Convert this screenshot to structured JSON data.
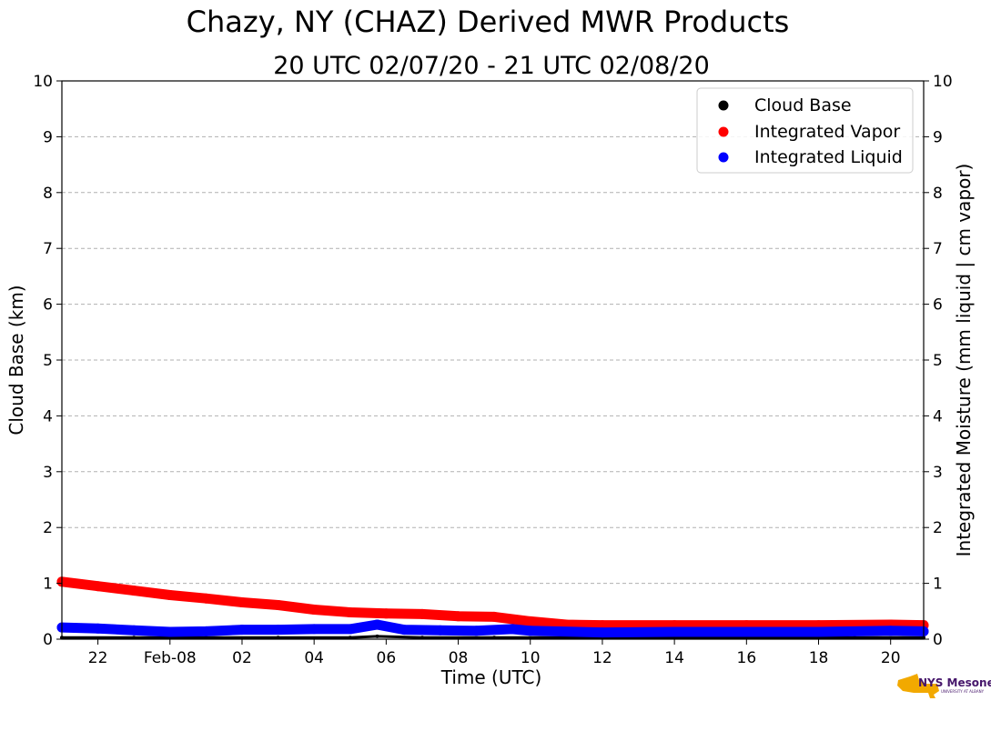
{
  "chart_data": {
    "type": "scatter",
    "title": "Chazy, NY (CHAZ) Derived MWR Products",
    "subtitle": "20 UTC 02/07/20 - 21 UTC 02/08/20",
    "xlabel": "Time (UTC)",
    "ylabel": "Cloud Base (km)",
    "ylabel_right": "Integrated Moisture (mm liquid | cm vapor)",
    "xlim": [
      "2020-02-07 21:00",
      "2020-02-08 20:55"
    ],
    "ylim": [
      0,
      10
    ],
    "ylim_right": [
      0,
      10
    ],
    "grid": true,
    "legend_position": "top-right",
    "x_ticks": [
      {
        "t": "2020-02-07 22:00",
        "label": "22"
      },
      {
        "t": "2020-02-08 00:00",
        "label": "Feb-08"
      },
      {
        "t": "2020-02-08 02:00",
        "label": "02"
      },
      {
        "t": "2020-02-08 04:00",
        "label": "04"
      },
      {
        "t": "2020-02-08 06:00",
        "label": "06"
      },
      {
        "t": "2020-02-08 08:00",
        "label": "08"
      },
      {
        "t": "2020-02-08 10:00",
        "label": "10"
      },
      {
        "t": "2020-02-08 12:00",
        "label": "12"
      },
      {
        "t": "2020-02-08 14:00",
        "label": "14"
      },
      {
        "t": "2020-02-08 16:00",
        "label": "16"
      },
      {
        "t": "2020-02-08 18:00",
        "label": "18"
      },
      {
        "t": "2020-02-08 20:00",
        "label": "20"
      }
    ],
    "y_ticks": [
      "0",
      "1",
      "2",
      "3",
      "4",
      "5",
      "6",
      "7",
      "8",
      "9",
      "10"
    ],
    "series": [
      {
        "name": "Cloud Base",
        "color": "#000000",
        "points": [
          [
            "2020-02-07 21:00",
            0.03
          ],
          [
            "2020-02-07 23:00",
            0.03
          ],
          [
            "2020-02-08 01:00",
            0.03
          ],
          [
            "2020-02-08 03:00",
            0.03
          ],
          [
            "2020-02-08 05:00",
            0.03
          ],
          [
            "2020-02-08 05:45",
            0.05
          ],
          [
            "2020-02-08 07:00",
            0.03
          ],
          [
            "2020-02-08 09:00",
            0.03
          ],
          [
            "2020-02-08 11:00",
            0.03
          ],
          [
            "2020-02-08 13:00",
            0.03
          ],
          [
            "2020-02-08 15:00",
            0.03
          ],
          [
            "2020-02-08 17:00",
            0.03
          ],
          [
            "2020-02-08 19:00",
            0.03
          ],
          [
            "2020-02-08 20:55",
            0.03
          ]
        ]
      },
      {
        "name": "Integrated Vapor",
        "color": "#ff0000",
        "points": [
          [
            "2020-02-07 21:00",
            1.03
          ],
          [
            "2020-02-07 22:00",
            0.95
          ],
          [
            "2020-02-07 23:00",
            0.87
          ],
          [
            "2020-02-08 00:00",
            0.79
          ],
          [
            "2020-02-08 01:00",
            0.73
          ],
          [
            "2020-02-08 02:00",
            0.66
          ],
          [
            "2020-02-08 03:00",
            0.61
          ],
          [
            "2020-02-08 04:00",
            0.53
          ],
          [
            "2020-02-08 05:00",
            0.48
          ],
          [
            "2020-02-08 06:00",
            0.46
          ],
          [
            "2020-02-08 07:00",
            0.45
          ],
          [
            "2020-02-08 08:00",
            0.41
          ],
          [
            "2020-02-08 09:00",
            0.4
          ],
          [
            "2020-02-08 10:00",
            0.32
          ],
          [
            "2020-02-08 11:00",
            0.26
          ],
          [
            "2020-02-08 12:00",
            0.25
          ],
          [
            "2020-02-08 14:00",
            0.25
          ],
          [
            "2020-02-08 16:00",
            0.25
          ],
          [
            "2020-02-08 18:00",
            0.25
          ],
          [
            "2020-02-08 20:00",
            0.26
          ],
          [
            "2020-02-08 20:55",
            0.25
          ]
        ]
      },
      {
        "name": "Integrated Liquid",
        "color": "#0000ff",
        "points": [
          [
            "2020-02-07 21:00",
            0.21
          ],
          [
            "2020-02-07 22:00",
            0.19
          ],
          [
            "2020-02-07 23:00",
            0.16
          ],
          [
            "2020-02-08 00:00",
            0.13
          ],
          [
            "2020-02-08 01:00",
            0.14
          ],
          [
            "2020-02-08 02:00",
            0.17
          ],
          [
            "2020-02-08 03:00",
            0.17
          ],
          [
            "2020-02-08 04:00",
            0.18
          ],
          [
            "2020-02-08 05:00",
            0.18
          ],
          [
            "2020-02-08 05:45",
            0.26
          ],
          [
            "2020-02-08 06:30",
            0.17
          ],
          [
            "2020-02-08 07:30",
            0.16
          ],
          [
            "2020-02-08 08:30",
            0.15
          ],
          [
            "2020-02-08 09:30",
            0.18
          ],
          [
            "2020-02-08 10:00",
            0.15
          ],
          [
            "2020-02-08 12:00",
            0.12
          ],
          [
            "2020-02-08 14:00",
            0.13
          ],
          [
            "2020-02-08 16:00",
            0.13
          ],
          [
            "2020-02-08 18:00",
            0.13
          ],
          [
            "2020-02-08 20:00",
            0.15
          ],
          [
            "2020-02-08 20:55",
            0.14
          ]
        ]
      }
    ]
  },
  "logo": {
    "line1": "NYS Mesonet",
    "line2": "UNIVERSITY AT ALBANY",
    "shape_color": "#f2a900",
    "text_color": "#46166b"
  }
}
